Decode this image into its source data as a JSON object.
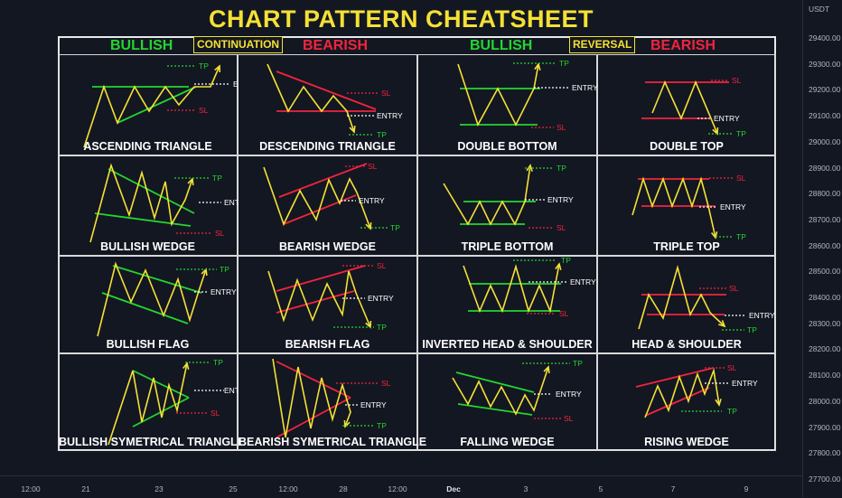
{
  "title": "CHART PATTERN CHEATSHEET",
  "headers": {
    "bullish_left": "BULLISH",
    "continuation": "CONTINUATION",
    "bearish_left": "BEARISH",
    "bullish_right": "BULLISH",
    "reversal": "REVERSAL",
    "bearish_right": "BEARISH"
  },
  "marker_labels": {
    "tp": "TP",
    "sl": "SL",
    "entry": "ENTRY"
  },
  "colors": {
    "title": "#f5e135",
    "bullish": "#22d62f",
    "bearish": "#f2243d",
    "price": "#f5e135",
    "background": "#131722"
  },
  "patterns": [
    "ASCENDING TRIANGLE",
    "DESCENDING TRIANGLE",
    "DOUBLE BOTTOM",
    "DOUBLE TOP",
    "BULLISH WEDGE",
    "BEARISH WEDGE",
    "TRIPLE BOTTOM",
    "TRIPLE TOP",
    "BULLISH FLAG",
    "BEARISH FLAG",
    "INVERTED HEAD & SHOULDER",
    "HEAD & SHOULDER",
    "BULLISH SYMETRICAL TRIANGLE",
    "BEARISH SYMETRICAL TRIANGLE",
    "FALLING WEDGE",
    "RISING WEDGE"
  ],
  "price_axis": {
    "currency": "USDT",
    "labels": [
      "29400.00",
      "29300.00",
      "29200.00",
      "29100.00",
      "29000.00",
      "28900.00",
      "28800.00",
      "28700.00",
      "28600.00",
      "28500.00",
      "28400.00",
      "28300.00",
      "28200.00",
      "28100.00",
      "28000.00",
      "27900.00",
      "27800.00",
      "27700.00"
    ]
  },
  "time_axis": {
    "labels": [
      "12:00",
      "21",
      "23",
      "25",
      "12:00",
      "28",
      "12:00",
      "Dec",
      "3",
      "5",
      "7",
      "9"
    ]
  }
}
